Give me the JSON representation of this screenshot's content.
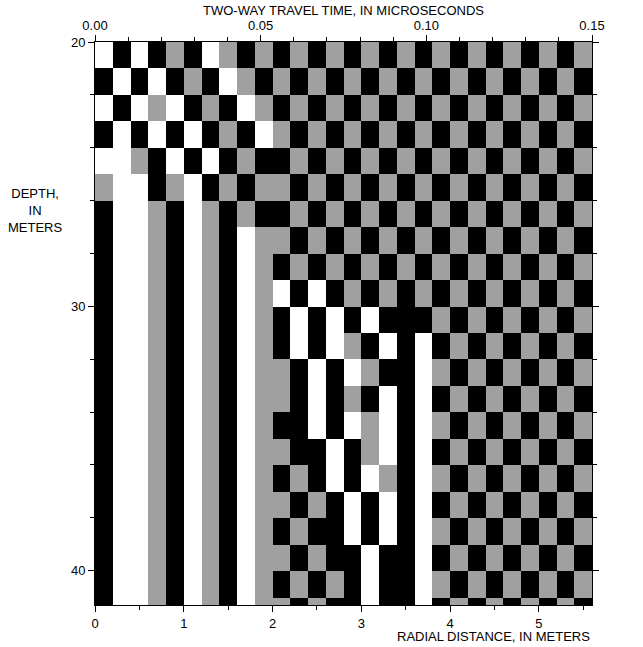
{
  "chart_data": {
    "type": "heatmap",
    "xlabel": "RADIAL DISTANCE, IN METERS",
    "x2label": "TWO-WAY TRAVEL TIME, IN MICROSECONDS",
    "ylabel": "DEPTH, IN METERS",
    "xlim": [
      0,
      5.6
    ],
    "xticks": [
      0,
      1,
      2,
      3,
      4,
      5
    ],
    "x2lim": [
      0,
      0.15
    ],
    "x2ticks": [
      {
        "value": 0,
        "label": "0.00"
      },
      {
        "value": 0.05,
        "label": "0.05"
      },
      {
        "value": 0.1,
        "label": "0.10"
      },
      {
        "value": 0.15,
        "label": "0.15"
      }
    ],
    "ylim": [
      20,
      41.3
    ],
    "yticks": [
      20,
      30,
      40
    ],
    "grid": false,
    "colors": [
      "#000000",
      "#a0a0a0",
      "#ffffff"
    ],
    "x": [
      0.1,
      0.3,
      0.5,
      0.7,
      0.9,
      1.1,
      1.3,
      1.5,
      1.7,
      1.9,
      2.1,
      2.3,
      2.5,
      2.7,
      2.9,
      3.1,
      3.3,
      3.5,
      3.7,
      3.9,
      4.1,
      4.3,
      4.5,
      4.7,
      4.9,
      5.1,
      5.3,
      5.5
    ],
    "y": [
      20.5,
      21.5,
      22.5,
      23.5,
      24.5,
      25.5,
      26.5,
      27.5,
      28.5,
      29.5,
      30.5,
      31.5,
      32.5,
      33.5,
      34.5,
      35.5,
      36.5,
      37.5,
      38.5,
      39.5,
      40.5,
      41.5
    ],
    "cells": [
      [
        2,
        0,
        2,
        0,
        1,
        0,
        2,
        1,
        0,
        1,
        0,
        1,
        0,
        1,
        0,
        1,
        0,
        1,
        0,
        1,
        0,
        1,
        0,
        1,
        0,
        1,
        0,
        1
      ],
      [
        0,
        2,
        0,
        2,
        0,
        1,
        0,
        2,
        1,
        0,
        1,
        0,
        1,
        0,
        1,
        0,
        1,
        0,
        1,
        0,
        1,
        0,
        1,
        0,
        1,
        0,
        1,
        0
      ],
      [
        2,
        0,
        2,
        1,
        2,
        0,
        1,
        0,
        2,
        1,
        0,
        1,
        0,
        1,
        0,
        1,
        0,
        1,
        0,
        1,
        0,
        1,
        0,
        1,
        0,
        1,
        0,
        1
      ],
      [
        0,
        2,
        0,
        2,
        0,
        2,
        0,
        1,
        0,
        2,
        1,
        0,
        1,
        0,
        1,
        0,
        1,
        0,
        1,
        0,
        1,
        0,
        1,
        0,
        1,
        0,
        1,
        0
      ],
      [
        2,
        2,
        1,
        0,
        2,
        0,
        2,
        0,
        1,
        0,
        0,
        1,
        0,
        1,
        0,
        1,
        0,
        1,
        0,
        1,
        0,
        1,
        0,
        1,
        0,
        1,
        0,
        1
      ],
      [
        1,
        2,
        2,
        0,
        1,
        2,
        0,
        1,
        0,
        1,
        1,
        0,
        1,
        0,
        1,
        0,
        1,
        0,
        1,
        0,
        1,
        0,
        1,
        0,
        1,
        0,
        1,
        0
      ],
      [
        0,
        2,
        2,
        1,
        0,
        2,
        1,
        0,
        1,
        0,
        0,
        1,
        0,
        1,
        0,
        1,
        0,
        1,
        0,
        1,
        0,
        1,
        0,
        1,
        0,
        1,
        0,
        1
      ],
      [
        0,
        2,
        2,
        1,
        0,
        2,
        1,
        0,
        2,
        1,
        1,
        0,
        1,
        0,
        1,
        0,
        1,
        0,
        1,
        0,
        1,
        0,
        1,
        0,
        1,
        0,
        1,
        0
      ],
      [
        0,
        2,
        2,
        1,
        0,
        2,
        1,
        0,
        2,
        1,
        0,
        1,
        0,
        1,
        0,
        1,
        0,
        1,
        0,
        1,
        0,
        1,
        0,
        1,
        0,
        1,
        0,
        1
      ],
      [
        0,
        2,
        2,
        1,
        0,
        2,
        1,
        0,
        2,
        1,
        2,
        0,
        2,
        0,
        1,
        0,
        1,
        0,
        1,
        0,
        1,
        0,
        1,
        0,
        1,
        0,
        1,
        0
      ],
      [
        0,
        2,
        2,
        1,
        0,
        2,
        1,
        0,
        2,
        1,
        0,
        2,
        0,
        2,
        0,
        2,
        0,
        0,
        0,
        1,
        0,
        1,
        0,
        1,
        0,
        1,
        0,
        1
      ],
      [
        0,
        2,
        2,
        1,
        0,
        2,
        1,
        0,
        2,
        1,
        0,
        2,
        0,
        2,
        1,
        0,
        2,
        0,
        2,
        0,
        1,
        0,
        1,
        0,
        1,
        0,
        1,
        0
      ],
      [
        0,
        2,
        2,
        1,
        0,
        2,
        1,
        0,
        2,
        1,
        1,
        0,
        2,
        0,
        2,
        1,
        0,
        0,
        2,
        1,
        0,
        1,
        0,
        1,
        0,
        1,
        0,
        1
      ],
      [
        0,
        2,
        2,
        1,
        0,
        2,
        1,
        0,
        2,
        1,
        1,
        0,
        2,
        0,
        1,
        0,
        2,
        0,
        2,
        0,
        1,
        0,
        1,
        0,
        1,
        0,
        1,
        0
      ],
      [
        0,
        2,
        2,
        1,
        0,
        2,
        1,
        0,
        2,
        1,
        0,
        0,
        2,
        0,
        2,
        1,
        2,
        0,
        2,
        1,
        0,
        1,
        0,
        1,
        0,
        1,
        0,
        1
      ],
      [
        0,
        2,
        2,
        1,
        0,
        2,
        1,
        0,
        2,
        1,
        1,
        0,
        0,
        2,
        0,
        1,
        2,
        0,
        2,
        0,
        1,
        0,
        1,
        0,
        1,
        0,
        1,
        0
      ],
      [
        0,
        2,
        2,
        1,
        0,
        2,
        1,
        0,
        2,
        1,
        0,
        1,
        0,
        2,
        0,
        2,
        1,
        0,
        2,
        1,
        0,
        1,
        0,
        1,
        0,
        1,
        0,
        1
      ],
      [
        0,
        2,
        2,
        1,
        0,
        2,
        1,
        0,
        2,
        1,
        1,
        0,
        1,
        0,
        2,
        0,
        2,
        0,
        2,
        0,
        1,
        0,
        1,
        0,
        1,
        0,
        1,
        0
      ],
      [
        0,
        2,
        2,
        1,
        0,
        2,
        1,
        0,
        2,
        1,
        0,
        1,
        0,
        0,
        2,
        0,
        2,
        0,
        2,
        1,
        0,
        1,
        0,
        1,
        0,
        1,
        0,
        1
      ],
      [
        0,
        2,
        2,
        1,
        0,
        2,
        1,
        0,
        2,
        1,
        1,
        0,
        1,
        0,
        0,
        2,
        0,
        0,
        2,
        0,
        1,
        0,
        1,
        0,
        1,
        0,
        1,
        0
      ],
      [
        0,
        2,
        2,
        1,
        0,
        2,
        1,
        0,
        2,
        1,
        0,
        1,
        0,
        1,
        0,
        2,
        0,
        0,
        2,
        1,
        0,
        1,
        0,
        1,
        0,
        1,
        0,
        1
      ],
      [
        0,
        2,
        2,
        1,
        0,
        2,
        1,
        0,
        2,
        1,
        1,
        0,
        1,
        0,
        0,
        2,
        0,
        0,
        2,
        0,
        1,
        0,
        1,
        0,
        1,
        0,
        1,
        0
      ]
    ]
  }
}
